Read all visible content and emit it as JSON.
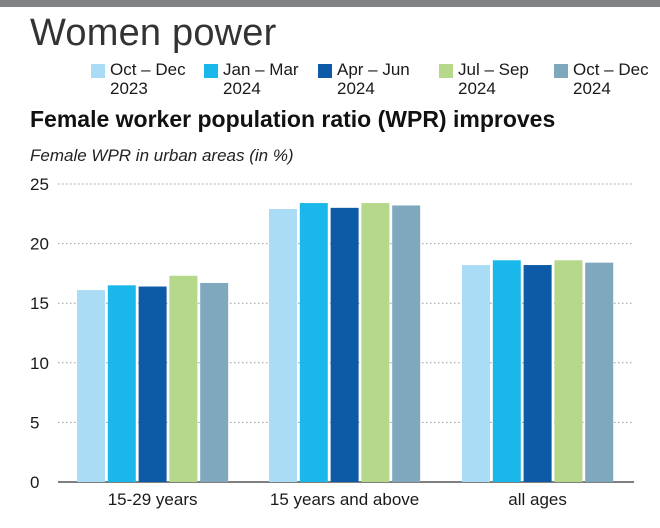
{
  "headline": "Women power",
  "chart_data": {
    "type": "bar",
    "title": "Female worker population ratio (WPR) improves",
    "subtitle": "Female WPR in urban areas (in %)",
    "xlabel": "",
    "ylabel": "",
    "categories": [
      "15-29 years",
      "15 years and above",
      "all ages"
    ],
    "series": [
      {
        "name": "Oct – Dec\n2023",
        "color": "#aadcf5",
        "values": [
          16.1,
          22.9,
          18.2
        ]
      },
      {
        "name": "Jan – Mar\n2024",
        "color": "#1ab8ea",
        "values": [
          16.5,
          23.4,
          18.6
        ]
      },
      {
        "name": "Apr – Jun\n2024",
        "color": "#0d5aa7",
        "values": [
          16.4,
          23.0,
          18.2
        ]
      },
      {
        "name": "Jul – Sep\n2024",
        "color": "#b5d88a",
        "values": [
          17.3,
          23.4,
          18.6
        ]
      },
      {
        "name": "Oct – Dec\n2024",
        "color": "#7fa8be",
        "values": [
          16.7,
          23.2,
          18.4
        ]
      }
    ],
    "ylim": [
      0,
      25
    ],
    "yticks": [
      0,
      5,
      10,
      15,
      20,
      25
    ],
    "grid": true,
    "legend_position": "top"
  }
}
